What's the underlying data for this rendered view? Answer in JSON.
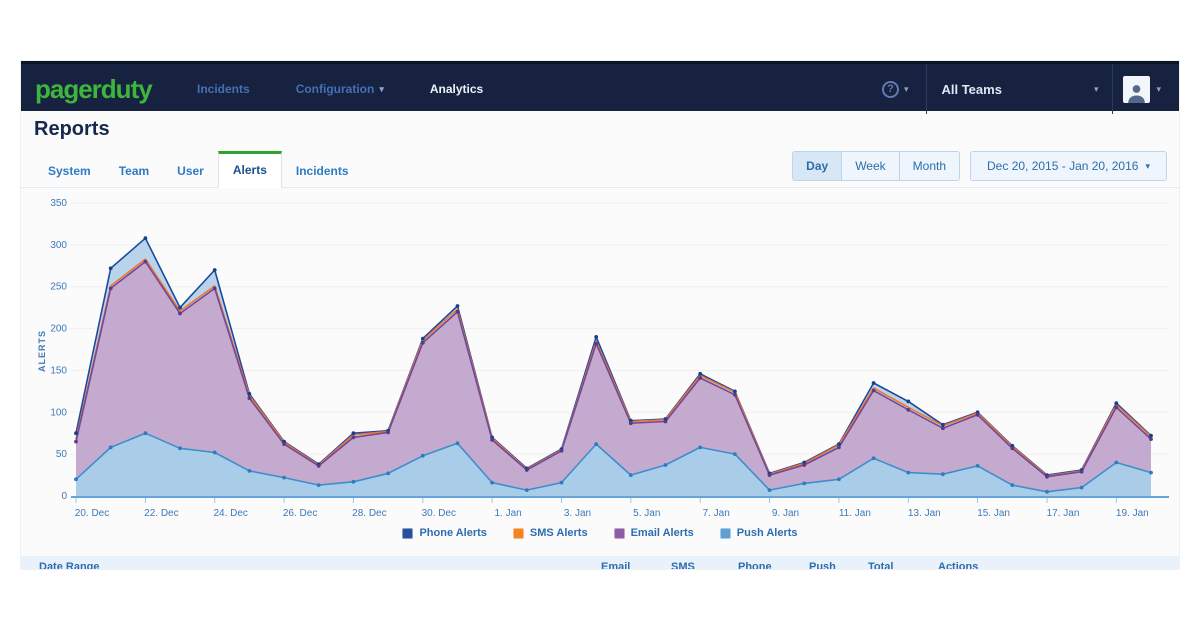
{
  "icons": {
    "caret": "▾",
    "help": "?"
  },
  "header": {
    "logo": "pagerduty",
    "nav": [
      {
        "label": "Incidents"
      },
      {
        "label": "Configuration",
        "caret": true
      },
      {
        "label": "Analytics",
        "current": true
      }
    ],
    "team_selector": "All Teams"
  },
  "page": {
    "title": "Reports"
  },
  "tabs": [
    {
      "label": "System"
    },
    {
      "label": "Team"
    },
    {
      "label": "User"
    },
    {
      "label": "Alerts",
      "active": true
    },
    {
      "label": "Incidents"
    }
  ],
  "range_buttons": [
    {
      "label": "Day",
      "active": true
    },
    {
      "label": "Week"
    },
    {
      "label": "Month"
    }
  ],
  "date_range": "Dec 20, 2015 - Jan 20, 2016",
  "chart_data": {
    "type": "area",
    "title": "",
    "ylabel": "ALERTS",
    "ylim": [
      0,
      350
    ],
    "yticks": [
      0,
      50,
      100,
      150,
      200,
      250,
      300,
      350
    ],
    "grid": true,
    "legend_position": "bottom",
    "tick_every": 2,
    "dates": [
      "20. Dec",
      "21. Dec",
      "22. Dec",
      "23. Dec",
      "24. Dec",
      "25. Dec",
      "26. Dec",
      "27. Dec",
      "28. Dec",
      "29. Dec",
      "30. Dec",
      "31. Dec",
      "1. Jan",
      "2. Jan",
      "3. Jan",
      "4. Jan",
      "5. Jan",
      "6. Jan",
      "7. Jan",
      "8. Jan",
      "9. Jan",
      "10. Jan",
      "11. Jan",
      "12. Jan",
      "13. Jan",
      "14. Jan",
      "15. Jan",
      "16. Jan",
      "17. Jan",
      "18. Jan",
      "19. Jan",
      "20. Jan"
    ],
    "series": [
      {
        "name": "Phone Alerts",
        "color": "#1c4a9e",
        "fill": "#b9d3eb",
        "legend_color": "#24509f",
        "values": [
          75,
          272,
          308,
          225,
          270,
          122,
          65,
          38,
          75,
          78,
          188,
          227,
          70,
          33,
          56,
          190,
          90,
          92,
          146,
          125,
          27,
          40,
          62,
          135,
          113,
          85,
          100,
          60,
          25,
          31,
          111,
          72
        ]
      },
      {
        "name": "SMS Alerts",
        "color": "#f47629",
        "fill": "none",
        "legend_color": "#f5831f",
        "values": [
          68,
          251,
          283,
          221,
          251,
          120,
          64,
          37,
          73,
          77,
          186,
          223,
          69,
          32,
          55,
          185,
          89,
          91,
          144,
          124,
          26,
          39,
          61,
          129,
          106,
          84,
          99,
          59,
          24,
          30,
          109,
          71
        ]
      },
      {
        "name": "Email Alerts",
        "color": "#70489c",
        "fill": "#c5aacf",
        "legend_color": "#8d5ca8",
        "values": [
          65,
          248,
          280,
          218,
          248,
          117,
          62,
          36,
          70,
          76,
          183,
          220,
          67,
          31,
          54,
          182,
          87,
          89,
          141,
          121,
          25,
          37,
          58,
          126,
          103,
          81,
          97,
          57,
          23,
          29,
          106,
          68
        ]
      },
      {
        "name": "Push Alerts",
        "color": "#3e8ecb",
        "fill": "#a9cde9",
        "legend_color": "#5f9fd6",
        "values": [
          20,
          58,
          75,
          57,
          52,
          30,
          22,
          13,
          17,
          27,
          48,
          63,
          16,
          7,
          16,
          62,
          25,
          37,
          58,
          50,
          7,
          15,
          20,
          45,
          28,
          26,
          36,
          13,
          5,
          10,
          40,
          28
        ]
      }
    ]
  },
  "table": {
    "headers": [
      "Date Range",
      "Email",
      "SMS",
      "Phone",
      "Push",
      "Total",
      "Actions"
    ]
  }
}
